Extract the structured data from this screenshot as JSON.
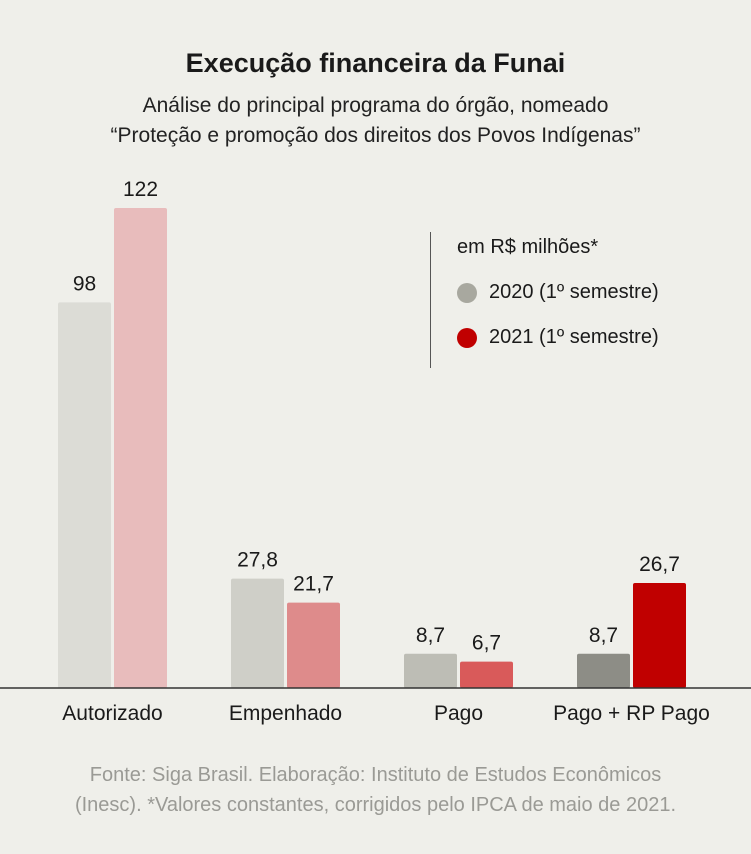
{
  "title": "Execução financeira da Funai",
  "subtitle_line1": "Análise do principal programa do órgão, nomeado",
  "subtitle_line2": "“Proteção e promoção dos direitos dos Povos Indígenas”",
  "legend": {
    "units": "em R$ milhões*",
    "items": [
      {
        "label": "2020 (1º semestre)",
        "color": "#a8a89f"
      },
      {
        "label": "2021 (1º semestre)",
        "color": "#c00000"
      }
    ]
  },
  "source": {
    "line1": "Fonte: Siga Brasil. Elaboração: Instituto de Estudos Econômicos",
    "line2": "(Inesc). *Valores constantes, corrigidos pelo IPCA de maio de 2021."
  },
  "chart_data": {
    "type": "bar",
    "categories": [
      "Autorizado",
      "Empenhado",
      "Pago",
      "Pago + RP Pago"
    ],
    "series": [
      {
        "name": "2020 (1º semestre)",
        "values": [
          98,
          27.8,
          8.7,
          8.7
        ],
        "labels": [
          "98",
          "27,8",
          "8,7",
          "8,7"
        ]
      },
      {
        "name": "2021 (1º semestre)",
        "values": [
          122,
          21.7,
          6.7,
          26.7
        ],
        "labels": [
          "122",
          "21,7",
          "6,7",
          "26,7"
        ]
      }
    ],
    "colors_2020": [
      "#dcdcd6",
      "#cfcfc8",
      "#bdbdb5",
      "#8d8d86"
    ],
    "colors_2021": [
      "#e8bcbc",
      "#de8b8b",
      "#d95a5a",
      "#c00000"
    ],
    "ylim": [
      0,
      122
    ],
    "grid": false,
    "legend_position": "top-right"
  }
}
